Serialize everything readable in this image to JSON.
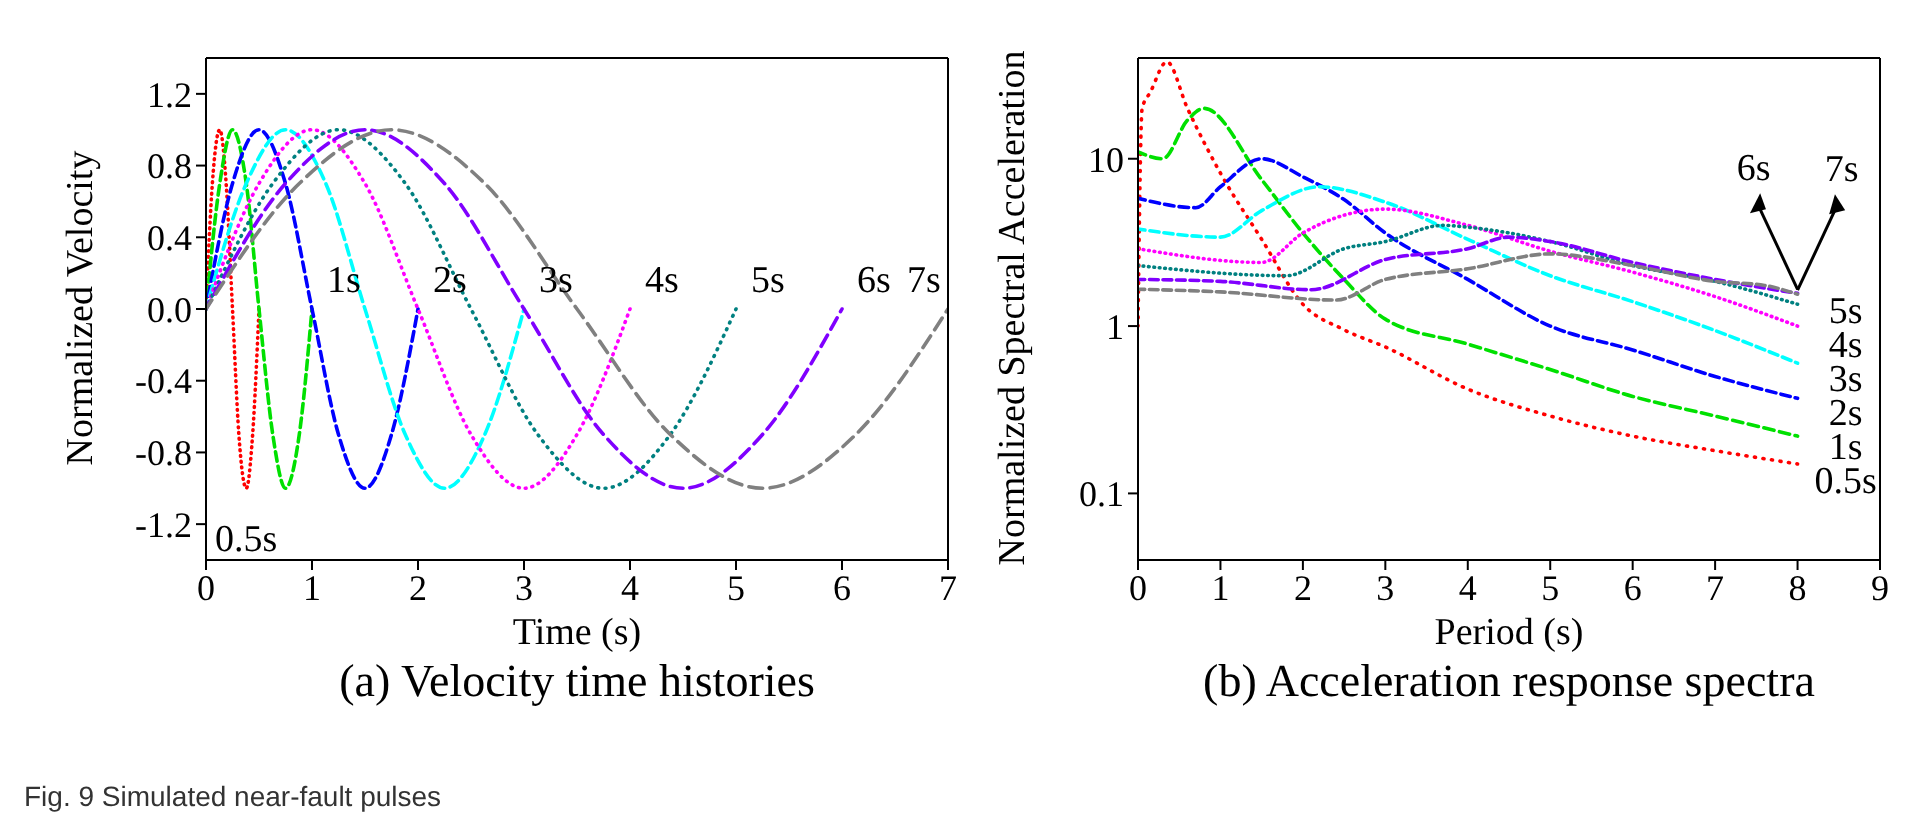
{
  "chart_data": [
    {
      "type": "line",
      "title": "(a) Velocity time histories",
      "xlabel": "Time (s)",
      "ylabel": "Normalized Velocity",
      "xlim": [
        0,
        7
      ],
      "xticks": [
        0,
        1,
        2,
        3,
        4,
        5,
        6,
        7
      ],
      "ylim": [
        -1.4,
        1.4
      ],
      "yticks": [
        -1.2,
        -0.8,
        -0.4,
        {
          "value": 0,
          "label": "0.0"
        },
        0.4,
        0.8,
        1.2
      ],
      "grid": false,
      "legend": false,
      "series": [
        {
          "color": "#ff0000",
          "line_style": "dotted",
          "x": [
            0,
            0.06,
            0.13,
            0.19,
            0.25,
            0.31,
            0.38,
            0.44,
            0.5
          ],
          "values": [
            0,
            0.7,
            1,
            0.7,
            0,
            -0.7,
            -1,
            -0.7,
            0
          ]
        },
        {
          "color": "#00e000",
          "line_style": "dashed",
          "x": [
            0,
            0.13,
            0.25,
            0.38,
            0.5,
            0.63,
            0.75,
            0.88,
            1
          ],
          "values": [
            0,
            0.7,
            1,
            0.7,
            0,
            -0.7,
            -1,
            -0.7,
            0
          ]
        },
        {
          "color": "#0000ff",
          "line_style": "dashed",
          "x": [
            0,
            0.25,
            0.5,
            0.75,
            1,
            1.25,
            1.5,
            1.75,
            2
          ],
          "values": [
            0,
            0.7,
            1,
            0.7,
            0,
            -0.7,
            -1,
            -0.7,
            0
          ]
        },
        {
          "color": "#00ffff",
          "line_style": "dashed",
          "x": [
            0,
            0.38,
            0.75,
            1.13,
            1.5,
            1.88,
            2.25,
            2.63,
            3
          ],
          "values": [
            0,
            0.7,
            1,
            0.7,
            0,
            -0.7,
            -1,
            -0.7,
            0
          ]
        },
        {
          "color": "#ff00ff",
          "line_style": "dotted",
          "x": [
            0,
            0.5,
            1,
            1.5,
            2,
            2.5,
            3,
            3.5,
            4
          ],
          "values": [
            0,
            0.7,
            1,
            0.7,
            0,
            -0.7,
            -1,
            -0.7,
            0
          ]
        },
        {
          "color": "#008080",
          "line_style": "dotted",
          "x": [
            0,
            0.63,
            1.25,
            1.88,
            2.5,
            3.13,
            3.75,
            4.38,
            5
          ],
          "values": [
            0,
            0.7,
            1,
            0.7,
            0,
            -0.7,
            -1,
            -0.7,
            0
          ]
        },
        {
          "color": "#8000ff",
          "line_style": "dashed",
          "x": [
            0,
            0.75,
            1.5,
            2.25,
            3,
            3.75,
            4.5,
            5.25,
            6
          ],
          "values": [
            0,
            0.7,
            1,
            0.7,
            0,
            -0.7,
            -1,
            -0.7,
            0
          ]
        },
        {
          "color": "#808080",
          "line_style": "dashed",
          "x": [
            0,
            0.88,
            1.75,
            2.63,
            3.5,
            4.38,
            5.25,
            6.13,
            7
          ],
          "values": [
            0,
            0.7,
            1,
            0.7,
            0,
            -0.7,
            -1,
            -0.7,
            0
          ]
        }
      ],
      "annotations": [
        {
          "text": "0.5s",
          "x": 0.38,
          "y": -1
        },
        {
          "text": "1s",
          "x": 1,
          "y": 0
        },
        {
          "text": "2s",
          "x": 2,
          "y": 0
        },
        {
          "text": "3s",
          "x": 3,
          "y": 0
        },
        {
          "text": "4s",
          "x": 4,
          "y": 0
        },
        {
          "text": "5s",
          "x": 5,
          "y": 0
        },
        {
          "text": "6s",
          "x": 6,
          "y": 0
        },
        {
          "text": "7s",
          "x": 7,
          "y": 0
        },
        "Fig. 9 Simulated near-fault pulses"
      ]
    },
    {
      "type": "line",
      "title": "(b) Acceleration response spectra",
      "xlabel": "Period (s)",
      "ylabel": "Normalized Spectral Acceleration",
      "xlim": [
        0,
        9
      ],
      "xticks": [
        0,
        1,
        2,
        3,
        4,
        5,
        6,
        7,
        8,
        9
      ],
      "ylim": [
        0.04,
        40
      ],
      "yticks": [
        0.1,
        1,
        10
      ],
      "log": true,
      "grid": false,
      "legend": false,
      "series": [
        {
          "color": "#ff0000",
          "line_style": "dotted",
          "x": [
            0,
            0.05,
            0.15,
            0.35,
            0.6,
            1,
            1.5,
            2,
            2.5,
            3,
            4,
            5,
            6,
            7,
            8
          ],
          "values": [
            1,
            20,
            25,
            38,
            20,
            8.2,
            3.3,
            1.35,
            0.95,
            0.75,
            0.42,
            0.29,
            0.22,
            0.18,
            0.15
          ]
        },
        {
          "color": "#00e000",
          "line_style": "dashed",
          "x": [
            0,
            0.3,
            0.6,
            0.8,
            1.5,
            2,
            2.5,
            3,
            4,
            5,
            6,
            7,
            8
          ],
          "values": [
            11,
            10,
            17,
            20,
            7.5,
            3.6,
            1.9,
            1.1,
            0.78,
            0.55,
            0.38,
            0.29,
            0.22
          ]
        },
        {
          "color": "#0000ff",
          "line_style": "dashed",
          "x": [
            0,
            0.7,
            1,
            1.5,
            2,
            2.5,
            3,
            4,
            5,
            6,
            7,
            8
          ],
          "values": [
            5.8,
            5.1,
            6.8,
            10,
            7.8,
            5.7,
            3.6,
            1.9,
            1,
            0.72,
            0.5,
            0.37
          ]
        },
        {
          "color": "#00ffff",
          "line_style": "dashed",
          "x": [
            0,
            1,
            1.5,
            2.2,
            3,
            4,
            5,
            6,
            7,
            8
          ],
          "values": [
            3.8,
            3.4,
            4.9,
            6.8,
            5.5,
            3.3,
            2,
            1.4,
            0.94,
            0.6
          ]
        },
        {
          "color": "#ff00ff",
          "line_style": "dotted",
          "x": [
            0,
            1.5,
            2,
            3,
            4,
            5,
            6,
            7,
            8
          ],
          "values": [
            2.9,
            2.4,
            3.6,
            5,
            4,
            2.8,
            2.1,
            1.5,
            1
          ]
        },
        {
          "color": "#008080",
          "line_style": "dotted",
          "x": [
            0,
            1.8,
            2.5,
            3,
            3.7,
            4,
            5,
            6,
            7,
            8
          ],
          "values": [
            2.3,
            2,
            2.9,
            3.2,
            4,
            3.9,
            3.2,
            2.3,
            1.85,
            1.35
          ]
        },
        {
          "color": "#8000ff",
          "line_style": "dashed",
          "x": [
            0,
            1,
            2.1,
            3,
            4,
            4.5,
            5,
            6,
            7,
            8
          ],
          "values": [
            1.9,
            1.85,
            1.65,
            2.5,
            2.9,
            3.4,
            3.2,
            2.4,
            1.9,
            1.57
          ]
        },
        {
          "color": "#808080",
          "line_style": "dashed",
          "x": [
            0,
            1,
            2.4,
            3,
            4,
            5,
            6,
            7,
            7.6,
            8
          ],
          "values": [
            1.66,
            1.6,
            1.43,
            1.9,
            2.2,
            2.7,
            2.3,
            1.85,
            1.75,
            1.55
          ]
        }
      ],
      "annotations": [
        {
          "text": "0.5s",
          "x": 8,
          "y": 0.15
        },
        {
          "text": "1s",
          "x": 8,
          "y": 0.22
        },
        {
          "text": "2s",
          "x": 8,
          "y": 0.37
        },
        {
          "text": "3s",
          "x": 8,
          "y": 0.6
        },
        {
          "text": "4s",
          "x": 8,
          "y": 1
        },
        {
          "text": "5s",
          "x": 8,
          "y": 1.35
        },
        {
          "text": "6s",
          "x": 8,
          "y": 1.57
        },
        {
          "text": "7s",
          "x": 8,
          "y": 1.55
        }
      ]
    }
  ]
}
